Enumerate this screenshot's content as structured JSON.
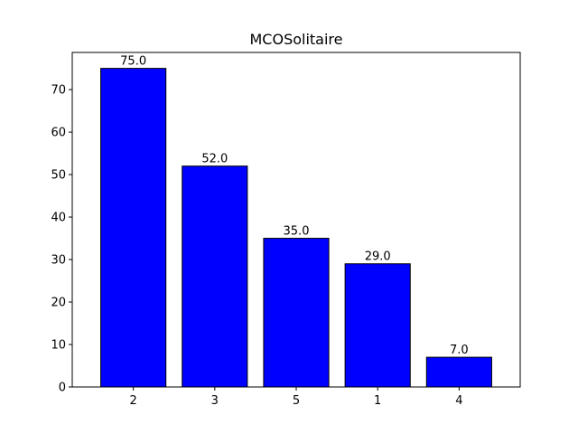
{
  "chart_data": {
    "type": "bar",
    "title": "MCOSolitaire",
    "xlabel": "",
    "ylabel": "",
    "categories": [
      "2",
      "3",
      "5",
      "1",
      "4"
    ],
    "values": [
      75.0,
      52.0,
      35.0,
      29.0,
      7.0
    ],
    "data_labels": [
      "75.0",
      "52.0",
      "35.0",
      "29.0",
      "7.0"
    ],
    "ylim": [
      0,
      78.75
    ],
    "yticks": [
      0,
      10,
      20,
      30,
      40,
      50,
      60,
      70
    ],
    "bar_color": "#0000ff",
    "bar_edge_color": "#000000",
    "grid": false,
    "legend": "none"
  }
}
